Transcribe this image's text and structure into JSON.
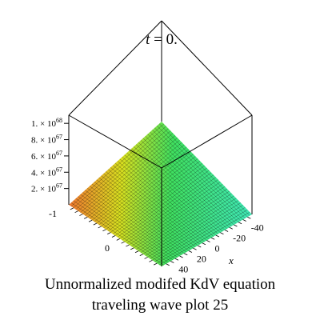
{
  "chart_data": {
    "type": "surface",
    "title": "t = 0.",
    "title_var": "t",
    "title_rest": " = 0.",
    "caption_line1": "Unnormalized modifed KdV equation",
    "caption_line2": "traveling wave plot 25",
    "xlabel": "x",
    "x_range": [
      -50,
      50
    ],
    "x_ticks": [
      "-40",
      "-20",
      "0",
      "20",
      "40"
    ],
    "y_ticks": [
      "-1",
      "0"
    ],
    "z_range": [
      0,
      1.1e+68
    ],
    "z_ticks": [
      "2. × 10",
      "4. × 10",
      "6. × 10",
      "8. × 10",
      "1. × 10"
    ],
    "z_tick_exponents": [
      "67",
      "67",
      "67",
      "67",
      "68"
    ],
    "surface_value": "0",
    "colors": {
      "orange": "#f07830",
      "yellow": "#d8e020",
      "green": "#40e060",
      "cyan": "#40e8b8",
      "box": "#000000",
      "grid": "#000000"
    }
  }
}
